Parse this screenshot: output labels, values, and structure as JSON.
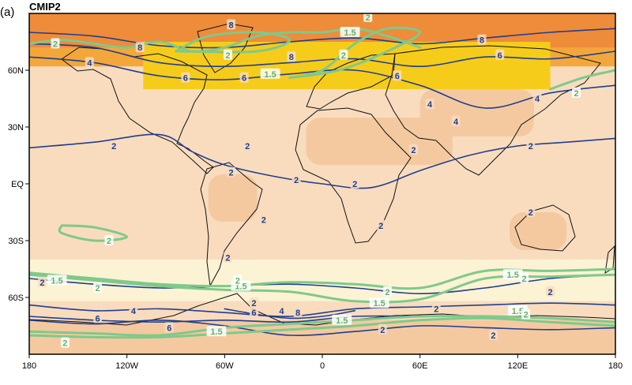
{
  "panel_label": "(a)",
  "chart_data": {
    "type": "heatmap",
    "title": "CMIP2",
    "xlabel": "",
    "ylabel": "",
    "xlim": [
      -180,
      180
    ],
    "ylim": [
      -90,
      90
    ],
    "x_ticks": [
      {
        "value": -180,
        "label": "180"
      },
      {
        "value": -120,
        "label": "120W"
      },
      {
        "value": -60,
        "label": "60W"
      },
      {
        "value": 0,
        "label": "0"
      },
      {
        "value": 60,
        "label": "60E"
      },
      {
        "value": 120,
        "label": "120E"
      },
      {
        "value": 180,
        "label": "180"
      }
    ],
    "y_ticks": [
      {
        "value": 60,
        "label": "60N"
      },
      {
        "value": 30,
        "label": "30N"
      },
      {
        "value": 0,
        "label": "EQ"
      },
      {
        "value": -30,
        "label": "30S"
      },
      {
        "value": -60,
        "label": "60S"
      }
    ],
    "colors": {
      "frame": "#000000",
      "coast": "#111111",
      "background": "#f9dcbe",
      "pale_band": "#fbf3d4",
      "tan": "#f4c9a0",
      "yellow": "#f6cc1a",
      "orange": "#f3a73a",
      "deep_orange": "#ee8c3a",
      "blue_contour": "#1f3f8f",
      "green_contour": "#7fc98a"
    },
    "shading": [
      {
        "lon": [
          -180,
          180
        ],
        "lat": [
          62,
          90
        ],
        "color": "orange"
      },
      {
        "lon": [
          -180,
          180
        ],
        "lat": [
          72,
          90
        ],
        "color": "deep_orange"
      },
      {
        "lon": [
          -110,
          140
        ],
        "lat": [
          50,
          75
        ],
        "color": "yellow"
      },
      {
        "lon": [
          -180,
          180
        ],
        "lat": [
          -62,
          -40
        ],
        "color": "pale_band"
      },
      {
        "lon": [
          -70,
          -40
        ],
        "lat": [
          -20,
          5
        ],
        "color": "tan"
      },
      {
        "lon": [
          -10,
          80
        ],
        "lat": [
          10,
          35
        ],
        "color": "tan"
      },
      {
        "lon": [
          60,
          130
        ],
        "lat": [
          25,
          50
        ],
        "color": "tan"
      },
      {
        "lon": [
          115,
          150
        ],
        "lat": [
          -35,
          -15
        ],
        "color": "tan"
      },
      {
        "lon": [
          -180,
          180
        ],
        "lat": [
          -90,
          -72
        ],
        "color": "tan"
      }
    ],
    "series": [
      {
        "color": "blue_contour",
        "value": 2,
        "lines": [
          [
            [
              -180,
              19
            ],
            [
              -140,
              22
            ],
            [
              -100,
              26
            ],
            [
              -80,
              17
            ],
            [
              -60,
              10
            ],
            [
              -30,
              4
            ],
            [
              0,
              0
            ],
            [
              30,
              -2
            ],
            [
              60,
              7
            ],
            [
              90,
              15
            ],
            [
              120,
              20
            ],
            [
              150,
              22
            ],
            [
              180,
              24
            ]
          ],
          [
            [
              -180,
              -50
            ],
            [
              -140,
              -53
            ],
            [
              -100,
              -55
            ],
            [
              -60,
              -54
            ],
            [
              -20,
              -53
            ],
            [
              20,
              -55
            ],
            [
              60,
              -58
            ],
            [
              100,
              -55
            ],
            [
              140,
              -50
            ],
            [
              180,
              -48
            ]
          ],
          [
            [
              -180,
              -72
            ],
            [
              -140,
              -74
            ],
            [
              -100,
              -72
            ],
            [
              -60,
              -75
            ],
            [
              -20,
              -80
            ],
            [
              20,
              -78
            ],
            [
              60,
              -75
            ],
            [
              100,
              -76
            ],
            [
              140,
              -77
            ],
            [
              180,
              -76
            ]
          ]
        ],
        "labels": [
          {
            "text": "2",
            "lon": -128,
            "lat": 20
          },
          {
            "text": "2",
            "lon": -56,
            "lat": 6
          },
          {
            "text": "2",
            "lon": -46,
            "lat": 20
          },
          {
            "text": "2",
            "lon": -16,
            "lat": 2
          },
          {
            "text": "2",
            "lon": 20,
            "lat": 0
          },
          {
            "text": "2",
            "lon": 56,
            "lat": 18
          },
          {
            "text": "2",
            "lon": 128,
            "lat": 20
          },
          {
            "text": "2",
            "lon": -36,
            "lat": -19
          },
          {
            "text": "2",
            "lon": 36,
            "lat": -22
          },
          {
            "text": "2",
            "lon": -58,
            "lat": -39
          },
          {
            "text": "2",
            "lon": -172,
            "lat": -52
          },
          {
            "text": "2",
            "lon": -42,
            "lat": -63
          },
          {
            "text": "2",
            "lon": 37,
            "lat": -77
          },
          {
            "text": "2",
            "lon": 70,
            "lat": -66
          },
          {
            "text": "2",
            "lon": 105,
            "lat": -80
          },
          {
            "text": "2",
            "lon": 140,
            "lat": -57
          },
          {
            "text": "2",
            "lon": 128,
            "lat": -15
          }
        ]
      },
      {
        "color": "blue_contour",
        "value": 4,
        "lines": [
          [
            [
              -180,
              67
            ],
            [
              -140,
              64
            ],
            [
              -100,
              57
            ],
            [
              -60,
              55
            ],
            [
              -20,
              58
            ],
            [
              20,
              60
            ],
            [
              60,
              52
            ],
            [
              100,
              40
            ],
            [
              140,
              48
            ],
            [
              180,
              52
            ]
          ],
          [
            [
              -180,
              -64
            ],
            [
              -140,
              -67
            ],
            [
              -100,
              -66
            ],
            [
              -60,
              -68
            ],
            [
              -20,
              -70
            ],
            [
              20,
              -66
            ],
            [
              60,
              -65
            ],
            [
              100,
              -64
            ],
            [
              140,
              -63
            ],
            [
              180,
              -64
            ]
          ]
        ],
        "labels": [
          {
            "text": "4",
            "lon": -143,
            "lat": 64
          },
          {
            "text": "4",
            "lon": 66,
            "lat": 42
          },
          {
            "text": "4",
            "lon": 82,
            "lat": 33
          },
          {
            "text": "4",
            "lon": 132,
            "lat": 45
          },
          {
            "text": "4",
            "lon": -116,
            "lat": -67
          },
          {
            "text": "4",
            "lon": -25,
            "lat": -67
          }
        ]
      },
      {
        "color": "blue_contour",
        "value": 6,
        "lines": [
          [
            [
              -180,
              74
            ],
            [
              -140,
              72
            ],
            [
              -100,
              64
            ],
            [
              -60,
              62
            ],
            [
              -20,
              64
            ],
            [
              20,
              66
            ],
            [
              60,
              62
            ],
            [
              100,
              67
            ],
            [
              140,
              66
            ],
            [
              180,
              70
            ]
          ],
          [
            [
              -180,
              -70
            ],
            [
              -140,
              -72
            ],
            [
              -100,
              -73
            ],
            [
              -60,
              -72
            ],
            [
              -20,
              -73
            ],
            [
              20,
              -70
            ],
            [
              60,
              -70
            ]
          ]
        ],
        "labels": [
          {
            "text": "6",
            "lon": -84,
            "lat": 56
          },
          {
            "text": "6",
            "lon": -48,
            "lat": 56
          },
          {
            "text": "6",
            "lon": 46,
            "lat": 57
          },
          {
            "text": "6",
            "lon": 109,
            "lat": 68
          },
          {
            "text": "6",
            "lon": -138,
            "lat": -71
          },
          {
            "text": "6",
            "lon": -42,
            "lat": -68
          },
          {
            "text": "6",
            "lon": -94,
            "lat": -76
          }
        ]
      },
      {
        "color": "blue_contour",
        "value": 8,
        "lines": [
          [
            [
              -180,
              80
            ],
            [
              -140,
              78
            ],
            [
              -100,
              73
            ],
            [
              -60,
              72
            ],
            [
              -20,
              75
            ],
            [
              20,
              77
            ],
            [
              60,
              74
            ],
            [
              100,
              77
            ],
            [
              140,
              80
            ],
            [
              180,
              82
            ]
          ],
          [
            [
              -60,
              -66
            ],
            [
              -40,
              -69
            ],
            [
              -20,
              -71
            ],
            [
              0,
              -70
            ],
            [
              20,
              -67
            ]
          ]
        ],
        "labels": [
          {
            "text": "8",
            "lon": -56,
            "lat": 84
          },
          {
            "text": "8",
            "lon": -112,
            "lat": 72
          },
          {
            "text": "8",
            "lon": -19,
            "lat": 67
          },
          {
            "text": "8",
            "lon": 98,
            "lat": 76
          },
          {
            "text": "8",
            "lon": -15,
            "lat": -68
          }
        ]
      },
      {
        "color": "green_contour",
        "value": 1.5,
        "lines": [
          [
            [
              -180,
              -48
            ],
            [
              -140,
              -51
            ],
            [
              -100,
              -54
            ],
            [
              -60,
              -56
            ],
            [
              -20,
              -57
            ],
            [
              20,
              -62
            ],
            [
              60,
              -61
            ],
            [
              100,
              -50
            ],
            [
              140,
              -49
            ],
            [
              180,
              -48
            ]
          ],
          [
            [
              -180,
              -78
            ],
            [
              -140,
              -79
            ],
            [
              -100,
              -80
            ],
            [
              -60,
              -76
            ],
            [
              -20,
              -74
            ],
            [
              20,
              -72
            ],
            [
              60,
              -70
            ],
            [
              100,
              -70
            ],
            [
              140,
              -71
            ],
            [
              180,
              -73
            ]
          ],
          [
            [
              -20,
              56
            ],
            [
              0,
              60
            ],
            [
              20,
              74
            ],
            [
              40,
              82
            ],
            [
              60,
              80
            ],
            [
              40,
              70
            ],
            [
              10,
              60
            ],
            [
              -20,
              56
            ]
          ],
          [
            [
              -90,
              70
            ],
            [
              -70,
              78
            ],
            [
              -40,
              80
            ],
            [
              -20,
              76
            ],
            [
              -40,
              70
            ],
            [
              -90,
              70
            ]
          ]
        ],
        "labels": [
          {
            "text": "1.5",
            "lon": -163,
            "lat": -51
          },
          {
            "text": "1.5",
            "lon": -50,
            "lat": -54
          },
          {
            "text": "1.5",
            "lon": 35,
            "lat": -63
          },
          {
            "text": "1.5",
            "lon": 117,
            "lat": -48
          },
          {
            "text": "1.5",
            "lon": 120,
            "lat": -67
          },
          {
            "text": "1.5",
            "lon": -65,
            "lat": -78
          },
          {
            "text": "1.5",
            "lon": 12,
            "lat": -72
          },
          {
            "text": "1.5",
            "lon": -32,
            "lat": 58
          },
          {
            "text": "1.5",
            "lon": 17,
            "lat": 80
          }
        ]
      },
      {
        "color": "green_contour",
        "value": 2,
        "lines": [
          [
            [
              -180,
              -47
            ],
            [
              -140,
              -50
            ],
            [
              -100,
              -53
            ],
            [
              -60,
              -54
            ],
            [
              -20,
              -52
            ],
            [
              20,
              -53
            ],
            [
              60,
              -55
            ],
            [
              100,
              -46
            ],
            [
              140,
              -46
            ],
            [
              180,
              -45
            ]
          ],
          [
            [
              -180,
              -80
            ],
            [
              -140,
              -81
            ],
            [
              -100,
              -81
            ],
            [
              -60,
              -79
            ],
            [
              -20,
              -77
            ],
            [
              20,
              -75
            ],
            [
              60,
              -72
            ],
            [
              100,
              -71
            ],
            [
              140,
              -73
            ],
            [
              180,
              -75
            ]
          ],
          [
            [
              -160,
              -22
            ],
            [
              -140,
              -23
            ],
            [
              -120,
              -28
            ],
            [
              -140,
              -30
            ],
            [
              -160,
              -26
            ],
            [
              -160,
              -22
            ]
          ],
          [
            [
              -180,
              74
            ],
            [
              -160,
              76
            ],
            [
              -140,
              74
            ],
            [
              -120,
              72
            ],
            [
              -100,
              75
            ],
            [
              -80,
              70
            ],
            [
              -60,
              72
            ],
            [
              -40,
              78
            ],
            [
              -20,
              80
            ],
            [
              0,
              80
            ],
            [
              20,
              82
            ],
            [
              40,
              78
            ],
            [
              60,
              72
            ]
          ],
          [
            [
              140,
              50
            ],
            [
              160,
              56
            ],
            [
              180,
              60
            ]
          ]
        ],
        "labels": [
          {
            "text": "2",
            "lon": -138,
            "lat": -55
          },
          {
            "text": "2",
            "lon": -52,
            "lat": -51
          },
          {
            "text": "2",
            "lon": 40,
            "lat": -57
          },
          {
            "text": "2",
            "lon": 124,
            "lat": -50
          },
          {
            "text": "2",
            "lon": 125,
            "lat": -69
          },
          {
            "text": "2",
            "lon": -131,
            "lat": -30
          },
          {
            "text": "2",
            "lon": -164,
            "lat": 74
          },
          {
            "text": "2",
            "lon": -58,
            "lat": 68
          },
          {
            "text": "2",
            "lon": 13,
            "lat": 68
          },
          {
            "text": "2",
            "lon": 28,
            "lat": 88
          },
          {
            "text": "2",
            "lon": -158,
            "lat": -84
          },
          {
            "text": "2",
            "lon": 156,
            "lat": 48
          }
        ]
      }
    ]
  }
}
